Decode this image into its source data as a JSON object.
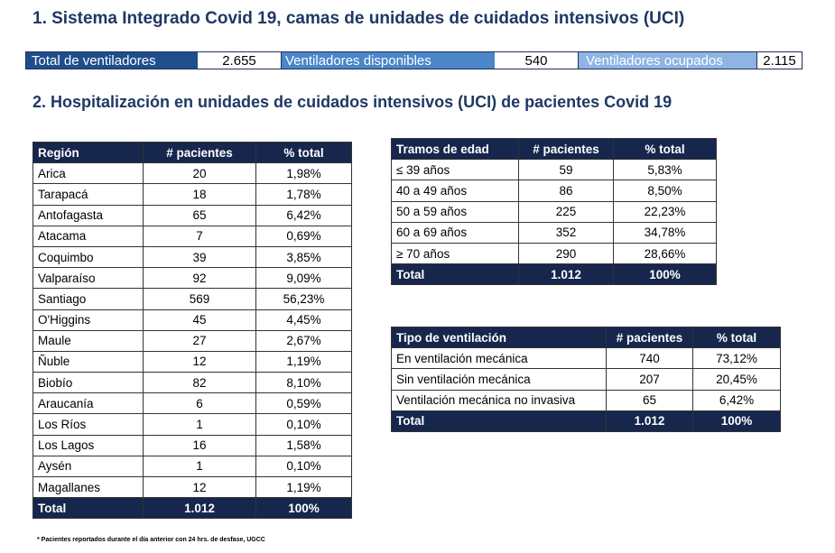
{
  "section1": {
    "title": "1. Sistema Integrado Covid 19, camas de unidades de cuidados intensivos (UCI)",
    "total_label": "Total de ventiladores",
    "total_value": "2.655",
    "disponibles_label": "Ventiladores disponibles",
    "disponibles_value": "540",
    "ocupados_label": "Ventiladores ocupados",
    "ocupados_value": "2.115",
    "colors": {
      "total": "#1f4e8c",
      "disponibles": "#4a86c8",
      "ocupados": "#8eb4e3"
    }
  },
  "section2": {
    "title": "2. Hospitalización en unidades de cuidados intensivos (UCI) de pacientes Covid 19"
  },
  "region_table": {
    "headers": [
      "Región",
      "# pacientes",
      "% total"
    ],
    "rows": [
      [
        "Arica",
        "20",
        "1,98%"
      ],
      [
        "Tarapacá",
        "18",
        "1,78%"
      ],
      [
        "Antofagasta",
        "65",
        "6,42%"
      ],
      [
        "Atacama",
        "7",
        "0,69%"
      ],
      [
        "Coquimbo",
        "39",
        "3,85%"
      ],
      [
        "Valparaíso",
        "92",
        "9,09%"
      ],
      [
        "Santiago",
        "569",
        "56,23%"
      ],
      [
        "O'Higgins",
        "45",
        "4,45%"
      ],
      [
        "Maule",
        "27",
        "2,67%"
      ],
      [
        "Ñuble",
        "12",
        "1,19%"
      ],
      [
        "Biobío",
        "82",
        "8,10%"
      ],
      [
        "Araucanía",
        "6",
        "0,59%"
      ],
      [
        "Los Ríos",
        "1",
        "0,10%"
      ],
      [
        "Los Lagos",
        "16",
        "1,58%"
      ],
      [
        "Aysén",
        "1",
        "0,10%"
      ],
      [
        "Magallanes",
        "12",
        "1,19%"
      ]
    ],
    "total": [
      "Total",
      "1.012",
      "100%"
    ]
  },
  "edad_table": {
    "headers": [
      "Tramos de edad",
      "# pacientes",
      "% total"
    ],
    "rows": [
      [
        "≤ 39 años",
        "59",
        "5,83%"
      ],
      [
        "40 a 49 años",
        "86",
        "8,50%"
      ],
      [
        "50 a 59 años",
        "225",
        "22,23%"
      ],
      [
        "60 a 69 años",
        "352",
        "34,78%"
      ],
      [
        "≥ 70 años",
        "290",
        "28,66%"
      ]
    ],
    "total": [
      "Total",
      "1.012",
      "100%"
    ]
  },
  "ventilacion_table": {
    "headers": [
      "Tipo de ventilación",
      "# pacientes",
      "% total"
    ],
    "rows": [
      [
        "En ventilación mecánica",
        "740",
        "73,12%"
      ],
      [
        "Sin ventilación mecánica",
        "207",
        "20,45%"
      ],
      [
        "Ventilación mecánica no invasiva",
        "65",
        "6,42%"
      ]
    ],
    "total": [
      "Total",
      "1.012",
      "100%"
    ]
  },
  "footnote": "* Pacientes reportados durante el día anterior con 24 hrs. de desfase, UGCC"
}
